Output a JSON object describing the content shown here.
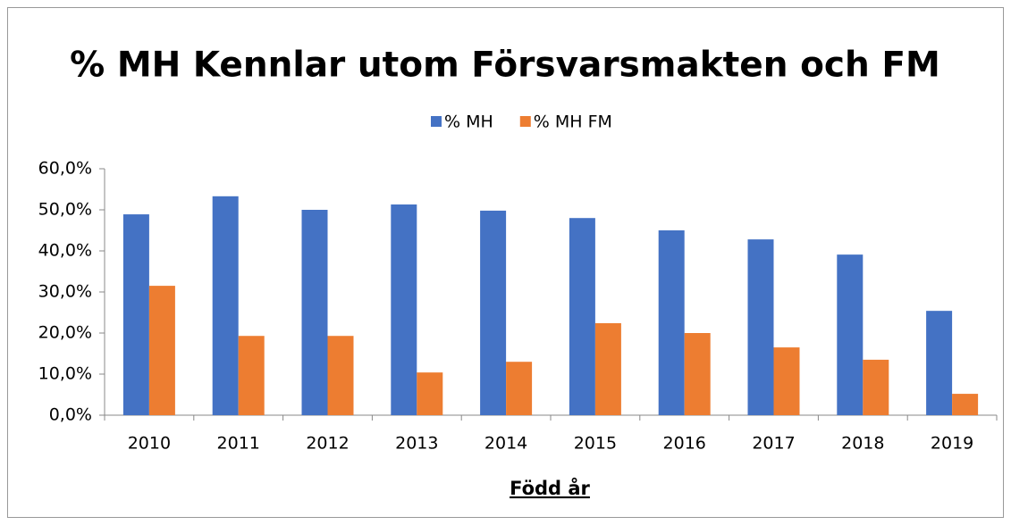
{
  "chart_data": {
    "type": "bar",
    "title": "% MH Kennlar utom Försvarsmakten och FM",
    "x_label": "Född år",
    "categories": [
      "2010",
      "2011",
      "2012",
      "2013",
      "2014",
      "2015",
      "2016",
      "2017",
      "2018",
      "2019"
    ],
    "series": [
      {
        "name": "% MH",
        "color": "#4472c4",
        "values": [
          48.9,
          53.3,
          50.0,
          51.3,
          49.8,
          48.0,
          45.0,
          42.8,
          39.1,
          25.4
        ]
      },
      {
        "name": "% MH FM",
        "color": "#ed7d31",
        "values": [
          31.5,
          19.3,
          19.3,
          10.4,
          13.0,
          22.4,
          20.0,
          16.5,
          13.5,
          5.2
        ]
      }
    ],
    "ylim": [
      0,
      60
    ],
    "yticks": [
      {
        "value": 0,
        "label": "0,0%"
      },
      {
        "value": 10,
        "label": "10,0%"
      },
      {
        "value": 20,
        "label": "20,0%"
      },
      {
        "value": 30,
        "label": "30,0%"
      },
      {
        "value": 40,
        "label": "40,0%"
      },
      {
        "value": 50,
        "label": "50,0%"
      },
      {
        "value": 60,
        "label": "60,0%"
      }
    ],
    "grid": false,
    "legend": "top"
  }
}
